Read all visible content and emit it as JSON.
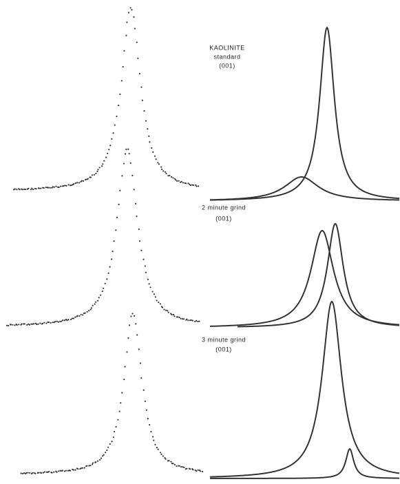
{
  "panels": [
    {
      "lines": [
        "KAOLINITE",
        "standard",
        "(001)"
      ]
    },
    {
      "lines": [
        "2 minute grind",
        "(001)"
      ]
    },
    {
      "lines": [
        "3 minute grind",
        "(001)"
      ]
    }
  ]
}
